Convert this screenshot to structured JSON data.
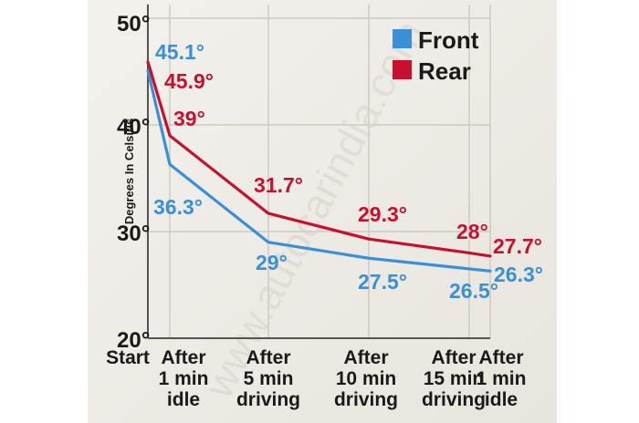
{
  "watermark": "www.autocarindia.com",
  "chart_data": {
    "type": "line",
    "ylabel": "Degrees In Celsius",
    "ylim": [
      20,
      50
    ],
    "yticks": [
      "20°",
      "30°",
      "40°",
      "50°"
    ],
    "ytick_values": [
      20,
      30,
      40,
      50
    ],
    "grid": true,
    "legend_position": "top-right",
    "x_labels": [
      [
        "Start"
      ],
      [
        "After",
        "1 min",
        "idle"
      ],
      [
        "After",
        "5 min",
        "driving"
      ],
      [
        "After",
        "10 min",
        "driving"
      ],
      [
        "After",
        "15 min",
        "driving"
      ],
      [
        "After",
        "1 min",
        "idle"
      ]
    ],
    "series": [
      {
        "name": "Front",
        "color": "#3a8fd6",
        "values": [
          45.1,
          36.3,
          29,
          27.5,
          26.5,
          26.3
        ],
        "labels": [
          "45.1°",
          "36.3°",
          "29°",
          "27.5°",
          "26.5°",
          "26.3°"
        ]
      },
      {
        "name": "Rear",
        "color": "#c8102e",
        "values": [
          45.9,
          39,
          31.7,
          29.3,
          28,
          27.7
        ],
        "labels": [
          "45.9°",
          "39°",
          "31.7°",
          "29.3°",
          "28°",
          "27.7°"
        ]
      }
    ]
  }
}
